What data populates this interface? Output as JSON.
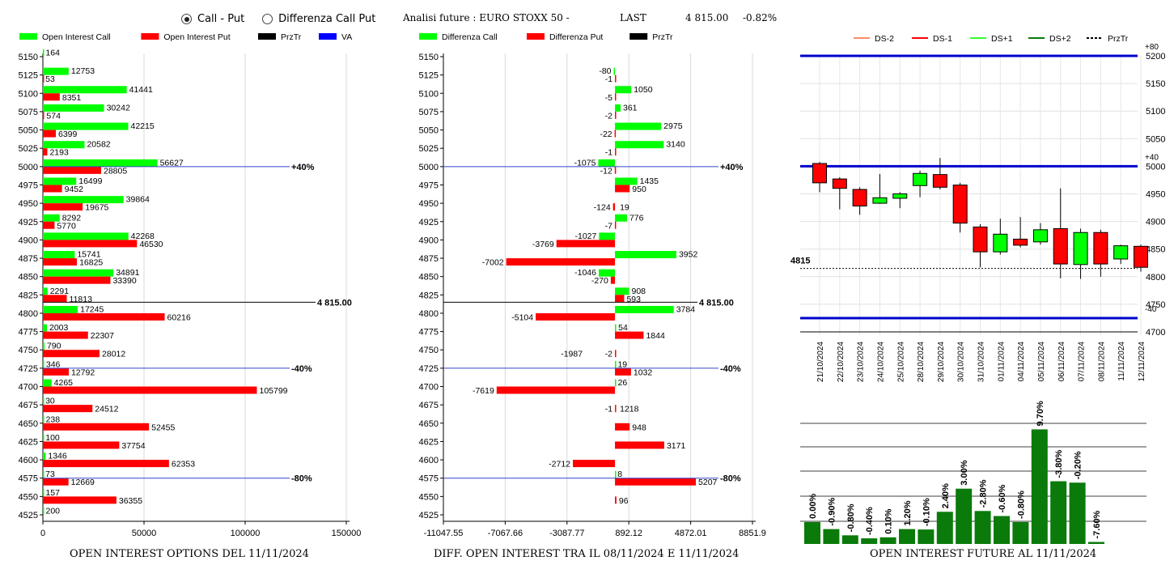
{
  "header": {
    "radio_options": [
      {
        "label": "Call - Put",
        "selected": true
      },
      {
        "label": "Differenza Call Put",
        "selected": false
      }
    ],
    "title": "Analisi future : EURO STOXX 50 -",
    "last_label": "LAST",
    "last_value": "4 815.00",
    "change": "-0.82%"
  },
  "footers": {
    "left": "OPEN INTEREST OPTIONS DEL 11/11/2024",
    "middle": "DIFF. OPEN INTEREST TRA IL 08/11/2024 E 11/11/2024",
    "right": "OPEN INTEREST FUTURE AL 11/11/2024"
  },
  "colors": {
    "call": "#00ff00",
    "put": "#ff0000",
    "line": "#0000cc",
    "dark_green": "#0a7a0a",
    "blue_level": "#0000cc"
  },
  "chart_data": [
    {
      "type": "bar",
      "orientation": "horizontal",
      "legend": [
        "Open Interest Call",
        "Open Interest Put",
        "PrzTr",
        "VA"
      ],
      "legend_colors": [
        "#00ff00",
        "#ff0000",
        "#000000",
        "#0000ff"
      ],
      "categories": [
        "5150",
        "5125",
        "5100",
        "5075",
        "5050",
        "5025",
        "5000",
        "4975",
        "4950",
        "4925",
        "4900",
        "4875",
        "4850",
        "4825",
        "4800",
        "4775",
        "4750",
        "4725",
        "4700",
        "4675",
        "4650",
        "4625",
        "4600",
        "4575",
        "4550",
        "4525"
      ],
      "series": [
        {
          "name": "Open Interest Call",
          "values": [
            164,
            12753,
            41441,
            30242,
            42215,
            20582,
            56627,
            16499,
            39864,
            8292,
            42268,
            15741,
            34891,
            2291,
            17245,
            2003,
            790,
            346,
            4265,
            30,
            238,
            100,
            1346,
            73,
            157,
            200
          ]
        },
        {
          "name": "Open Interest Put",
          "values": [
            null,
            53,
            8351,
            574,
            6399,
            2193,
            28805,
            9452,
            19675,
            5770,
            46530,
            16825,
            33390,
            11813,
            60216,
            22307,
            28012,
            12792,
            105799,
            24512,
            52455,
            37754,
            62353,
            12669,
            36355,
            null
          ]
        }
      ],
      "xlim": [
        0,
        150000
      ],
      "xticks": [
        "0",
        "50000",
        "100000",
        "150000"
      ],
      "reference_lines": [
        {
          "strike": "5000",
          "label": "+40%"
        },
        {
          "strike": "4725",
          "label": "-40%"
        },
        {
          "strike": "4575",
          "label": "-80%"
        }
      ],
      "price_line": {
        "value": 4815,
        "label": "4 815.00"
      }
    },
    {
      "type": "bar",
      "orientation": "horizontal",
      "legend": [
        "Differenza Call",
        "Differenza Put",
        "PrzTr"
      ],
      "legend_colors": [
        "#00ff00",
        "#ff0000",
        "#000000"
      ],
      "categories": [
        "5150",
        "5125",
        "5100",
        "5075",
        "5050",
        "5025",
        "5000",
        "4975",
        "4950",
        "4925",
        "4900",
        "4875",
        "4850",
        "4825",
        "4800",
        "4775",
        "4750",
        "4725",
        "4700",
        "4675",
        "4650",
        "4625",
        "4600",
        "4575",
        "4550",
        "4525"
      ],
      "series": [
        {
          "name": "Differenza Call",
          "values": [
            null,
            -80,
            1050,
            361,
            2975,
            3140,
            -1075,
            1435,
            null,
            776,
            -1027,
            3952,
            -1046,
            908,
            3784,
            54,
            null,
            19,
            26,
            null,
            null,
            null,
            null,
            8,
            null,
            null
          ]
        },
        {
          "name": "Differenza Put",
          "values": [
            null,
            -1,
            -5,
            -2,
            -22,
            -1,
            -12,
            950,
            -124,
            -7,
            -3769,
            -7002,
            -270,
            593,
            -5104,
            1844,
            -2,
            1032,
            -7619,
            -1,
            948,
            3171,
            -2712,
            5207,
            96,
            null
          ]
        }
      ],
      "extra_labels": [
        {
          "strike": "4950",
          "value": "19"
        },
        {
          "strike": "4675",
          "value": "1218"
        },
        {
          "strike": "4750",
          "value": "-1987"
        }
      ],
      "xlim": [
        -11047.55,
        8851.9
      ],
      "xticks": [
        "-11047.55",
        "-7067.66",
        "-3087.77",
        "892.12",
        "4872.01",
        "8851.9"
      ],
      "reference_lines": [
        {
          "strike": "5000",
          "label": "+40%"
        },
        {
          "strike": "4725",
          "label": "-40%"
        },
        {
          "strike": "4575",
          "label": "-80%"
        }
      ],
      "price_line": {
        "value": 4815,
        "label": "4 815.00"
      }
    },
    {
      "type": "candlestick",
      "legend": [
        "DS-2",
        "DS-1",
        "DS+1",
        "DS+2",
        "PrzTr"
      ],
      "legend_colors": [
        "#ff8c69",
        "#ff0000",
        "#33ff33",
        "#0a7a0a",
        "#000000"
      ],
      "x": [
        "21/10/2024",
        "22/10/2024",
        "23/10/2024",
        "24/10/2024",
        "25/10/2024",
        "28/10/2024",
        "29/10/2024",
        "30/10/2024",
        "31/10/2024",
        "01/11/2024",
        "04/11/2024",
        "05/11/2024",
        "06/11/2024",
        "07/11/2024",
        "08/11/2024",
        "11/11/2024",
        "12/11/2024"
      ],
      "candles": [
        {
          "open": 5005,
          "close": 4970,
          "high": 5008,
          "low": 4953
        },
        {
          "open": 4977,
          "close": 4960,
          "high": 4980,
          "low": 4922
        },
        {
          "open": 4958,
          "close": 4928,
          "high": 4962,
          "low": 4912
        },
        {
          "open": 4933,
          "close": 4943,
          "high": 4986,
          "low": 4932
        },
        {
          "open": 4942,
          "close": 4950,
          "high": 4953,
          "low": 4924
        },
        {
          "open": 4965,
          "close": 4987,
          "high": 4992,
          "low": 4944
        },
        {
          "open": 4985,
          "close": 4962,
          "high": 5015,
          "low": 4958
        },
        {
          "open": 4966,
          "close": 4897,
          "high": 4970,
          "low": 4880
        },
        {
          "open": 4890,
          "close": 4845,
          "high": 4895,
          "low": 4817
        },
        {
          "open": 4845,
          "close": 4877,
          "high": 4905,
          "low": 4840
        },
        {
          "open": 4868,
          "close": 4857,
          "high": 4908,
          "low": 4853
        },
        {
          "open": 4863,
          "close": 4885,
          "high": 4897,
          "low": 4858
        },
        {
          "open": 4887,
          "close": 4823,
          "high": 4960,
          "low": 4797
        },
        {
          "open": 4822,
          "close": 4880,
          "high": 4887,
          "low": 4796
        },
        {
          "open": 4880,
          "close": 4823,
          "high": 4885,
          "low": 4800
        },
        {
          "open": 4832,
          "close": 4856,
          "high": 4858,
          "low": 4823
        },
        {
          "open": 4855,
          "close": 4817,
          "high": 4858,
          "low": 4809
        }
      ],
      "ylim": [
        4700,
        5200
      ],
      "yticks": [
        "5200",
        "5150",
        "5100",
        "5050",
        "5000",
        "4950",
        "4900",
        "4850",
        "4800",
        "4750",
        "4700"
      ],
      "levels": [
        {
          "value": 5200,
          "label": "+80"
        },
        {
          "value": 5000,
          "label": "+40"
        },
        {
          "value": 4725,
          "label": "-40"
        }
      ],
      "price_line": {
        "value": 4815,
        "label": "4815"
      }
    },
    {
      "type": "bar",
      "title": "OPEN INTEREST FUTURE AL 11/11/2024",
      "labels": [
        "0.00%",
        "-0.90%",
        "-0.80%",
        "-0.40%",
        "0.10%",
        "1.20%",
        "-0.10%",
        "2.40%",
        "3.00%",
        "-2.80%",
        "-0.60%",
        "-0.80%",
        "9.70%",
        "-3.80%",
        "-0.20%",
        "-7.60%"
      ],
      "values": [
        10.9,
        7.4,
        4.3,
        2.8,
        3.3,
        7.4,
        7.2,
        16.0,
        27.5,
        16.4,
        13.9,
        10.9,
        57.0,
        31.2,
        30.5,
        1.0
      ]
    }
  ]
}
